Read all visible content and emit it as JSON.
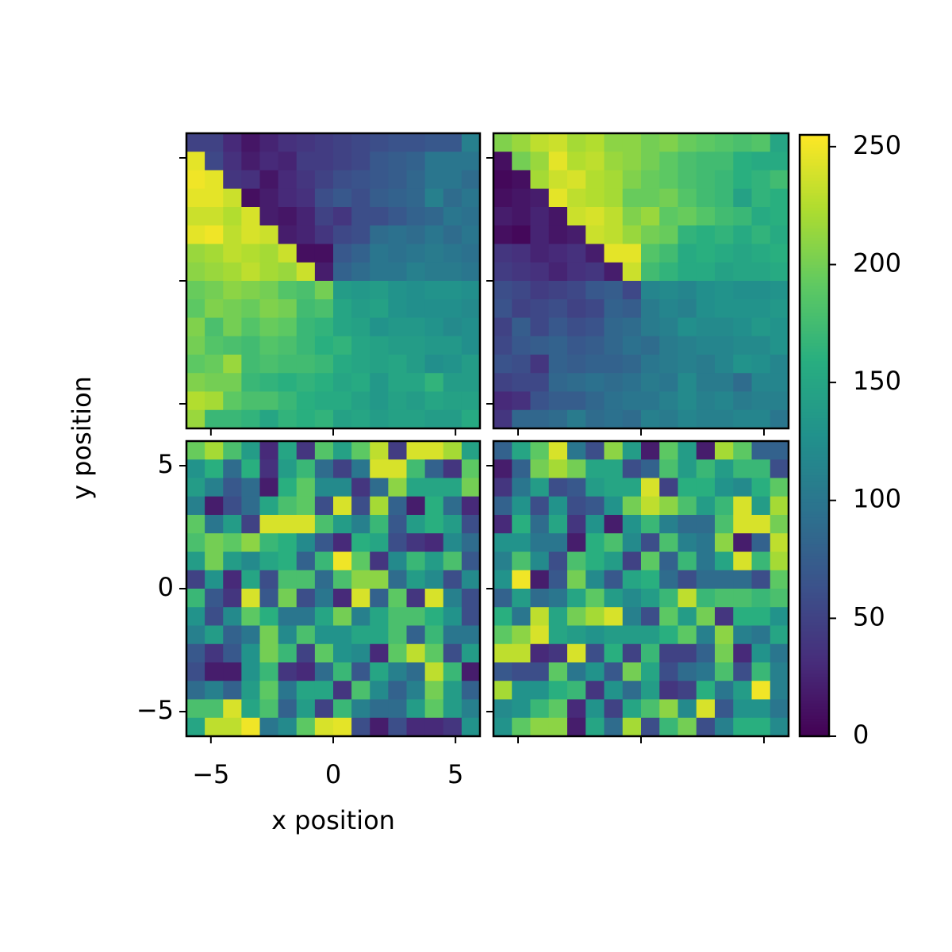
{
  "chart_data": [
    {
      "type": "heatmap",
      "cmap": "viridis",
      "vlim": [
        0,
        255
      ],
      "xlim": [
        -6,
        6
      ],
      "ylim": [
        -6,
        6
      ],
      "xticks": [
        -5,
        0,
        5
      ],
      "yticks": [
        -5,
        0,
        5
      ],
      "tick_labels": false,
      "z": [
        [
          50,
          50,
          30,
          15,
          25,
          35,
          40,
          45,
          50,
          55,
          60,
          65,
          65,
          70,
          70,
          110
        ],
        [
          245,
          55,
          35,
          20,
          30,
          25,
          45,
          45,
          50,
          55,
          70,
          75,
          80,
          100,
          100,
          100
        ],
        [
          250,
          245,
          40,
          35,
          15,
          30,
          40,
          50,
          60,
          65,
          70,
          75,
          85,
          100,
          100,
          90
        ],
        [
          245,
          245,
          235,
          10,
          20,
          30,
          35,
          60,
          70,
          60,
          75,
          80,
          85,
          110,
          90,
          100
        ],
        [
          235,
          235,
          225,
          240,
          20,
          15,
          25,
          50,
          40,
          60,
          60,
          70,
          80,
          85,
          100,
          95
        ],
        [
          245,
          250,
          230,
          240,
          235,
          20,
          25,
          40,
          55,
          60,
          90,
          95,
          90,
          100,
          90,
          100
        ],
        [
          215,
          220,
          230,
          225,
          220,
          235,
          10,
          10,
          70,
          80,
          100,
          95,
          100,
          105,
          100,
          95
        ],
        [
          210,
          215,
          220,
          230,
          220,
          215,
          235,
          20,
          80,
          90,
          100,
          100,
          110,
          105,
          105,
          100
        ],
        [
          195,
          200,
          210,
          205,
          200,
          185,
          180,
          200,
          140,
          135,
          140,
          130,
          125,
          130,
          130,
          125
        ],
        [
          190,
          205,
          200,
          195,
          205,
          200,
          175,
          180,
          150,
          140,
          145,
          130,
          125,
          125,
          125,
          120
        ],
        [
          205,
          180,
          200,
          185,
          195,
          190,
          170,
          165,
          150,
          145,
          130,
          135,
          135,
          130,
          120,
          125
        ],
        [
          200,
          185,
          180,
          175,
          185,
          180,
          170,
          160,
          165,
          150,
          145,
          140,
          140,
          135,
          135,
          125
        ],
        [
          190,
          195,
          215,
          175,
          180,
          175,
          175,
          170,
          155,
          150,
          145,
          150,
          140,
          125,
          130,
          140
        ],
        [
          205,
          200,
          200,
          170,
          165,
          160,
          165,
          160,
          150,
          155,
          135,
          150,
          150,
          165,
          140,
          140
        ],
        [
          225,
          220,
          190,
          180,
          180,
          170,
          160,
          155,
          155,
          145,
          135,
          145,
          140,
          150,
          145,
          145
        ],
        [
          215,
          170,
          170,
          165,
          150,
          165,
          160,
          165,
          145,
          150,
          140,
          145,
          145,
          140,
          140,
          155
        ]
      ]
    },
    {
      "type": "heatmap",
      "cmap": "viridis",
      "vlim": [
        0,
        255
      ],
      "xlim": [
        -6,
        6
      ],
      "ylim": [
        -6,
        6
      ],
      "xticks": [
        -5,
        0,
        5
      ],
      "yticks": [
        -5,
        0,
        5
      ],
      "tick_labels": false,
      "z": [
        [
          205,
          215,
          230,
          235,
          220,
          225,
          210,
          210,
          200,
          205,
          195,
          190,
          185,
          180,
          185,
          150
        ],
        [
          10,
          200,
          215,
          245,
          225,
          230,
          215,
          210,
          200,
          190,
          180,
          175,
          175,
          160,
          155,
          155
        ],
        [
          5,
          10,
          220,
          235,
          240,
          225,
          220,
          205,
          195,
          190,
          180,
          175,
          170,
          160,
          165,
          175
        ],
        [
          10,
          15,
          20,
          245,
          230,
          225,
          220,
          195,
          195,
          200,
          185,
          175,
          170,
          145,
          165,
          160
        ],
        [
          20,
          15,
          25,
          15,
          235,
          240,
          230,
          205,
          215,
          190,
          195,
          185,
          175,
          170,
          155,
          160
        ],
        [
          10,
          5,
          25,
          15,
          20,
          235,
          230,
          215,
          200,
          195,
          165,
          160,
          165,
          155,
          165,
          155
        ],
        [
          40,
          35,
          25,
          30,
          35,
          20,
          245,
          245,
          185,
          175,
          155,
          160,
          155,
          150,
          155,
          160
        ],
        [
          45,
          40,
          35,
          25,
          35,
          40,
          20,
          235,
          175,
          165,
          155,
          155,
          145,
          150,
          150,
          155
        ],
        [
          60,
          55,
          45,
          50,
          55,
          70,
          75,
          55,
          115,
          120,
          115,
          125,
          130,
          125,
          125,
          130
        ],
        [
          65,
          50,
          55,
          60,
          50,
          55,
          80,
          75,
          105,
          115,
          110,
          125,
          130,
          130,
          130,
          135
        ],
        [
          50,
          75,
          55,
          70,
          60,
          65,
          85,
          90,
          105,
          110,
          125,
          120,
          120,
          125,
          135,
          130
        ],
        [
          55,
          70,
          75,
          80,
          70,
          75,
          85,
          95,
          90,
          105,
          110,
          115,
          115,
          120,
          120,
          130
        ],
        [
          65,
          60,
          40,
          80,
          75,
          80,
          80,
          85,
          100,
          105,
          110,
          105,
          115,
          130,
          125,
          115
        ],
        [
          50,
          55,
          55,
          85,
          90,
          95,
          90,
          95,
          105,
          100,
          120,
          105,
          105,
          90,
          115,
          115
        ],
        [
          30,
          35,
          65,
          75,
          75,
          85,
          95,
          100,
          100,
          110,
          120,
          110,
          115,
          105,
          110,
          110
        ],
        [
          40,
          85,
          85,
          90,
          105,
          90,
          95,
          90,
          110,
          105,
          115,
          110,
          110,
          115,
          115,
          100
        ]
      ]
    },
    {
      "type": "heatmap",
      "cmap": "viridis",
      "vlim": [
        0,
        255
      ],
      "xlim": [
        -6,
        6
      ],
      "ylim": [
        -6,
        6
      ],
      "tick_labels": true,
      "xlabel": "x position",
      "ylabel": "y position",
      "xticks": [
        {
          "value": -5,
          "label": "−5"
        },
        0,
        5
      ],
      "yticks": [
        {
          "value": -5,
          "label": "−5"
        },
        0,
        5
      ],
      "z": [
        [
          195,
          220,
          180,
          140,
          30,
          150,
          40,
          185,
          145,
          190,
          230,
          45,
          240,
          240,
          220,
          145
        ],
        [
          130,
          160,
          90,
          160,
          35,
          140,
          170,
          90,
          50,
          100,
          240,
          240,
          175,
          80,
          40,
          190
        ],
        [
          140,
          110,
          70,
          90,
          20,
          160,
          190,
          120,
          120,
          40,
          90,
          210,
          150,
          150,
          150,
          200
        ],
        [
          110,
          20,
          60,
          90,
          150,
          180,
          190,
          60,
          240,
          60,
          220,
          80,
          20,
          160,
          90,
          30
        ],
        [
          190,
          100,
          140,
          50,
          240,
          240,
          240,
          180,
          140,
          110,
          170,
          70,
          140,
          160,
          140,
          60
        ],
        [
          180,
          200,
          190,
          210,
          170,
          160,
          120,
          70,
          30,
          160,
          150,
          60,
          40,
          30,
          120,
          90
        ],
        [
          140,
          200,
          140,
          120,
          150,
          160,
          80,
          170,
          250,
          190,
          40,
          120,
          170,
          140,
          180,
          70
        ],
        [
          50,
          130,
          30,
          150,
          60,
          180,
          180,
          90,
          180,
          210,
          210,
          90,
          140,
          120,
          60,
          120
        ],
        [
          170,
          70,
          40,
          240,
          70,
          200,
          60,
          100,
          30,
          240,
          80,
          190,
          40,
          240,
          110,
          60
        ],
        [
          130,
          60,
          120,
          190,
          160,
          100,
          100,
          150,
          200,
          110,
          150,
          180,
          180,
          160,
          130,
          60
        ],
        [
          110,
          140,
          80,
          100,
          200,
          120,
          180,
          130,
          130,
          150,
          150,
          180,
          80,
          170,
          100,
          100
        ],
        [
          70,
          40,
          70,
          130,
          200,
          170,
          50,
          190,
          130,
          120,
          30,
          190,
          230,
          190,
          60,
          140
        ],
        [
          60,
          20,
          20,
          130,
          170,
          40,
          30,
          90,
          170,
          70,
          150,
          110,
          90,
          230,
          170,
          20
        ],
        [
          90,
          110,
          80,
          140,
          190,
          100,
          150,
          150,
          40,
          180,
          120,
          80,
          110,
          200,
          140,
          80
        ],
        [
          180,
          180,
          240,
          150,
          180,
          80,
          140,
          50,
          170,
          110,
          90,
          90,
          140,
          190,
          140,
          110
        ],
        [
          150,
          230,
          230,
          250,
          100,
          120,
          190,
          240,
          245,
          60,
          20,
          60,
          30,
          30,
          40,
          130
        ]
      ]
    },
    {
      "type": "heatmap",
      "cmap": "viridis",
      "vlim": [
        0,
        255
      ],
      "xlim": [
        -6,
        6
      ],
      "ylim": [
        -6,
        6
      ],
      "xticks": [
        -5,
        0,
        5
      ],
      "yticks": [
        -5,
        0,
        5
      ],
      "tick_labels": false,
      "z": [
        [
          80,
          150,
          190,
          240,
          100,
          60,
          210,
          140,
          20,
          190,
          140,
          20,
          220,
          190,
          80,
          80
        ],
        [
          20,
          80,
          200,
          220,
          200,
          150,
          150,
          60,
          80,
          180,
          140,
          170,
          140,
          170,
          170,
          60
        ],
        [
          40,
          100,
          140,
          60,
          70,
          140,
          150,
          150,
          240,
          50,
          160,
          160,
          130,
          120,
          160,
          190
        ],
        [
          80,
          130,
          60,
          130,
          60,
          70,
          130,
          200,
          230,
          210,
          180,
          140,
          170,
          240,
          140,
          220
        ],
        [
          30,
          160,
          90,
          150,
          40,
          130,
          20,
          130,
          170,
          110,
          90,
          90,
          180,
          240,
          240,
          200
        ],
        [
          130,
          130,
          100,
          100,
          20,
          160,
          180,
          120,
          60,
          180,
          110,
          100,
          210,
          20,
          80,
          230
        ],
        [
          110,
          180,
          120,
          60,
          180,
          160,
          140,
          50,
          190,
          80,
          170,
          100,
          150,
          240,
          170,
          220
        ],
        [
          130,
          250,
          20,
          70,
          200,
          120,
          70,
          150,
          160,
          90,
          60,
          90,
          90,
          90,
          60,
          190
        ],
        [
          80,
          140,
          90,
          100,
          150,
          190,
          140,
          120,
          140,
          170,
          230,
          170,
          180,
          180,
          170,
          180
        ],
        [
          160,
          100,
          230,
          150,
          200,
          220,
          240,
          110,
          60,
          190,
          140,
          200,
          40,
          160,
          160,
          130
        ],
        [
          190,
          210,
          240,
          150,
          140,
          130,
          140,
          140,
          140,
          160,
          190,
          110,
          210,
          110,
          100,
          150
        ],
        [
          230,
          230,
          30,
          40,
          240,
          60,
          160,
          50,
          170,
          50,
          50,
          80,
          200,
          30,
          130,
          100
        ],
        [
          70,
          60,
          60,
          190,
          100,
          130,
          70,
          200,
          150,
          60,
          90,
          100,
          180,
          60,
          170,
          110
        ],
        [
          220,
          130,
          130,
          160,
          170,
          40,
          130,
          90,
          140,
          40,
          50,
          160,
          100,
          140,
          250,
          110
        ],
        [
          120,
          130,
          170,
          190,
          30,
          130,
          50,
          150,
          180,
          210,
          120,
          240,
          70,
          130,
          130,
          100
        ],
        [
          130,
          190,
          210,
          210,
          20,
          150,
          90,
          220,
          60,
          170,
          200,
          60,
          110,
          160,
          160,
          120
        ]
      ]
    },
    {
      "type": "colorbar",
      "cmap": "viridis",
      "vlim": [
        0,
        255
      ],
      "ticks": [
        0,
        50,
        100,
        150,
        200,
        250
      ]
    }
  ]
}
